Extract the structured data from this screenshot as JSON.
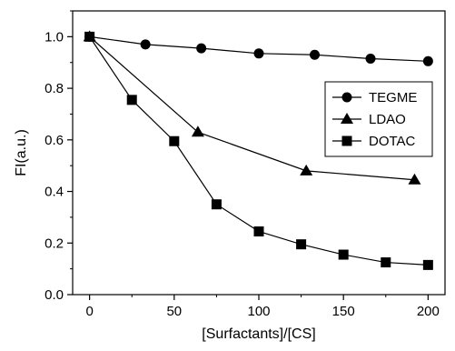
{
  "chart_data": {
    "type": "line",
    "xlabel": "[Surfactants]/[CS]",
    "ylabel": "FI(a.u.)",
    "xlim": [
      -10,
      210
    ],
    "ylim": [
      0.0,
      1.1
    ],
    "x_ticks": [
      0,
      50,
      100,
      150,
      200
    ],
    "x_tick_labels": [
      "0",
      "50",
      "100",
      "150",
      "200"
    ],
    "y_ticks": [
      0.0,
      0.2,
      0.4,
      0.6,
      0.8,
      1.0
    ],
    "y_tick_labels": [
      "0.0",
      "0.2",
      "0.4",
      "0.6",
      "0.8",
      "1.0"
    ],
    "legend_position": "right",
    "grid": false,
    "series": [
      {
        "name": "TEGME",
        "marker": "circle",
        "x": [
          0,
          33,
          66,
          100,
          133,
          166,
          200
        ],
        "y": [
          1.0,
          0.97,
          0.955,
          0.935,
          0.93,
          0.915,
          0.905
        ]
      },
      {
        "name": "LDAO",
        "marker": "triangle",
        "x": [
          0,
          64,
          128,
          192
        ],
        "y": [
          1.0,
          0.63,
          0.48,
          0.445
        ]
      },
      {
        "name": "DOTAC",
        "marker": "square",
        "x": [
          0,
          25,
          50,
          75,
          100,
          125,
          150,
          175,
          200
        ],
        "y": [
          1.0,
          0.755,
          0.595,
          0.35,
          0.245,
          0.195,
          0.155,
          0.125,
          0.115
        ]
      }
    ]
  }
}
